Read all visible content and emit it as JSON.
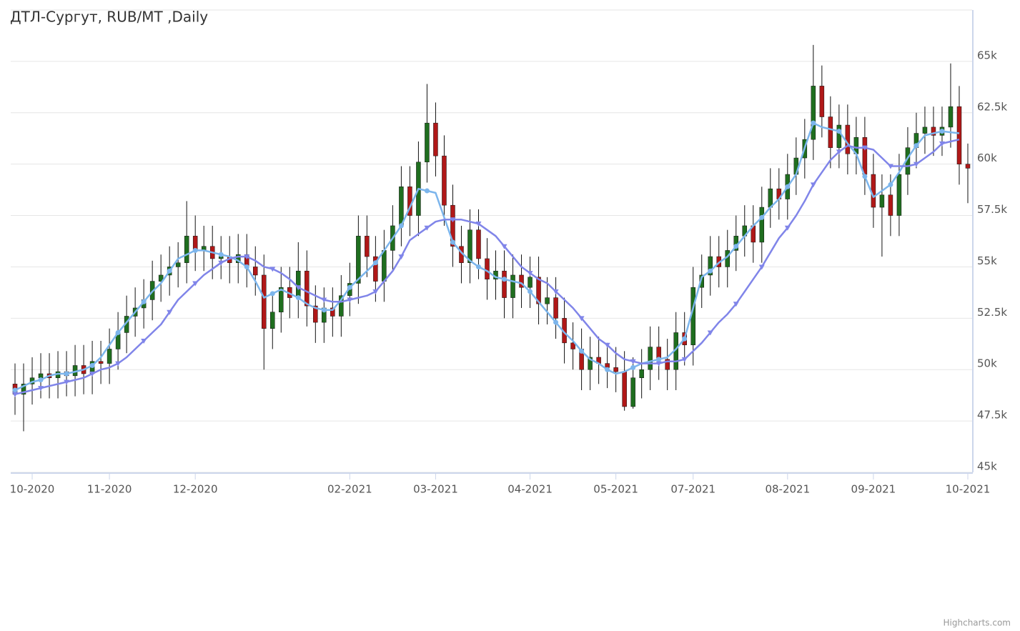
{
  "chart_data": {
    "type": "candlestick",
    "title": "ДТЛ-Сургут, RUB/MT ,Daily",
    "credits": "Highcharts.com",
    "categories": [
      null,
      null,
      "10-2020",
      null,
      null,
      null,
      null,
      null,
      null,
      null,
      null,
      "11-2020",
      null,
      null,
      null,
      null,
      null,
      null,
      null,
      null,
      null,
      "12-2020",
      null,
      null,
      null,
      null,
      null,
      null,
      null,
      null,
      null,
      null,
      null,
      null,
      null,
      null,
      null,
      null,
      null,
      "02-2021",
      null,
      null,
      null,
      null,
      null,
      null,
      null,
      null,
      null,
      "03-2021",
      null,
      null,
      null,
      null,
      null,
      null,
      null,
      null,
      null,
      null,
      "04-2021",
      null,
      null,
      null,
      null,
      null,
      null,
      null,
      null,
      null,
      "05-2021",
      null,
      null,
      null,
      null,
      null,
      null,
      null,
      null,
      "07-2021",
      null,
      null,
      null,
      null,
      null,
      null,
      null,
      null,
      null,
      null,
      "08-2021",
      null,
      null,
      null,
      null,
      null,
      null,
      null,
      null,
      null,
      "09-2021",
      null,
      null,
      null,
      null,
      null,
      null,
      null,
      null,
      null,
      null,
      "10-2021"
    ],
    "open": [
      49300,
      48800,
      49300,
      49600,
      49800,
      49600,
      49900,
      49700,
      50200,
      49800,
      50400,
      50300,
      51000,
      51800,
      52600,
      53000,
      53400,
      54300,
      54600,
      55000,
      55200,
      56500,
      55800,
      56000,
      55400,
      55500,
      55200,
      55600,
      55000,
      54600,
      52000,
      52800,
      54000,
      53500,
      54800,
      53100,
      52300,
      53000,
      52600,
      53600,
      54200,
      56500,
      55500,
      54300,
      55800,
      57000,
      58900,
      57500,
      60100,
      62000,
      60400,
      58000,
      56000,
      55200,
      56800,
      55400,
      54400,
      54800,
      53500,
      54600,
      54000,
      54500,
      53200,
      53500,
      52500,
      51300,
      51000,
      50000,
      50600,
      50300,
      50100,
      49900,
      48200,
      49600,
      50000,
      51100,
      50500,
      50000,
      51800,
      51200,
      54000,
      54600,
      55500,
      55000,
      55800,
      56500,
      57000,
      56200,
      57900,
      58800,
      58300,
      59500,
      60300,
      61200,
      63800,
      62300,
      60800,
      61900,
      60500,
      61300,
      59500,
      57900,
      58500,
      57500,
      59500,
      60800,
      61500,
      61800,
      61400,
      61800,
      62800,
      60000
    ],
    "high": [
      50300,
      50300,
      50600,
      50800,
      50800,
      50900,
      50900,
      51200,
      51200,
      51400,
      51400,
      52000,
      52800,
      53600,
      54000,
      54400,
      55300,
      55600,
      56000,
      56200,
      58200,
      57500,
      57000,
      57000,
      56500,
      56500,
      56600,
      56600,
      56000,
      55600,
      53800,
      55000,
      55000,
      56200,
      55800,
      54100,
      54000,
      54000,
      54600,
      55200,
      57500,
      57500,
      56500,
      56800,
      58000,
      59900,
      59900,
      61100,
      63900,
      63000,
      61400,
      59000,
      57000,
      57800,
      57800,
      56400,
      55800,
      55800,
      55600,
      55600,
      55500,
      55500,
      54500,
      54500,
      53500,
      52300,
      52000,
      51600,
      51600,
      51300,
      51100,
      50900,
      50600,
      51000,
      52100,
      52100,
      51500,
      52800,
      52800,
      55000,
      55600,
      56500,
      56500,
      56800,
      57500,
      58000,
      58000,
      58900,
      59800,
      59800,
      60500,
      61300,
      62200,
      65800,
      64800,
      63300,
      62900,
      62900,
      62300,
      62300,
      60500,
      59500,
      59500,
      60500,
      61800,
      62500,
      62800,
      62800,
      62800,
      64900,
      63800,
      61000
    ],
    "low": [
      47800,
      47000,
      48300,
      48600,
      48600,
      48600,
      48700,
      48700,
      48800,
      48800,
      49300,
      49300,
      50000,
      50800,
      51600,
      52000,
      52400,
      53300,
      53600,
      54000,
      54200,
      54800,
      54800,
      54400,
      54400,
      54200,
      54200,
      54000,
      53600,
      50000,
      51000,
      51800,
      52500,
      52500,
      52100,
      51300,
      51300,
      51600,
      51600,
      52600,
      53200,
      54500,
      53300,
      53300,
      54800,
      56000,
      56500,
      56500,
      59100,
      59400,
      57000,
      55000,
      54200,
      54200,
      54400,
      53400,
      53400,
      52500,
      52500,
      53000,
      53000,
      52200,
      52200,
      51500,
      50300,
      50000,
      49000,
      49000,
      49300,
      49100,
      48900,
      48000,
      48100,
      48600,
      49000,
      49500,
      49000,
      49000,
      50200,
      50200,
      53000,
      53600,
      54000,
      54000,
      54800,
      55500,
      55200,
      55200,
      56900,
      57300,
      57300,
      58500,
      59300,
      60200,
      61300,
      59800,
      59800,
      59500,
      59500,
      58500,
      56900,
      55500,
      56500,
      56500,
      58500,
      59800,
      60500,
      60400,
      60400,
      60800,
      59000,
      58100
    ],
    "close": [
      48800,
      49300,
      49600,
      49800,
      49600,
      49900,
      49700,
      50200,
      49800,
      50400,
      50300,
      51000,
      51800,
      52600,
      53000,
      53400,
      54300,
      54600,
      55000,
      55200,
      56500,
      55800,
      56000,
      55400,
      55500,
      55200,
      55600,
      55000,
      54600,
      52000,
      52800,
      54000,
      53500,
      54800,
      53100,
      52300,
      53000,
      52600,
      53600,
      54200,
      56500,
      55500,
      54300,
      55800,
      57000,
      58900,
      57500,
      60100,
      62000,
      60400,
      58000,
      56000,
      55200,
      56800,
      55400,
      54400,
      54800,
      53500,
      54600,
      54000,
      54500,
      53200,
      53500,
      52500,
      51300,
      51000,
      50000,
      50600,
      50300,
      50100,
      49900,
      48200,
      49600,
      50000,
      51100,
      50500,
      50000,
      51800,
      51200,
      54000,
      54600,
      55500,
      55000,
      55800,
      56500,
      57000,
      56200,
      57900,
      58800,
      58300,
      59500,
      60300,
      61200,
      63800,
      62300,
      60800,
      61900,
      60500,
      61300,
      59500,
      57900,
      58500,
      57500,
      59500,
      60800,
      61500,
      61800,
      61400,
      61800,
      62800,
      60000,
      59800
    ],
    "up_color": "#1f6e1f",
    "down_color": "#b01818",
    "lines": [
      {
        "color": "#7cb5ec",
        "marker": "circle",
        "values": [
          49000,
          49200,
          49400,
          49500,
          49700,
          49800,
          49800,
          49900,
          50000,
          50200,
          50600,
          51200,
          51800,
          52300,
          52800,
          53300,
          53800,
          54200,
          54800,
          55400,
          55600,
          55800,
          55800,
          55700,
          55600,
          55500,
          55300,
          55000,
          54300,
          53500,
          53700,
          53900,
          53700,
          53500,
          53200,
          53000,
          52900,
          52900,
          53400,
          54000,
          54400,
          54800,
          55200,
          55800,
          56400,
          57000,
          57900,
          58800,
          58700,
          58600,
          57400,
          56200,
          55700,
          55300,
          55000,
          54800,
          54500,
          54400,
          54300,
          54200,
          53800,
          53300,
          52800,
          52300,
          51800,
          51400,
          50900,
          50500,
          50300,
          50000,
          49800,
          49900,
          50100,
          50300,
          50400,
          50500,
          50600,
          51000,
          51500,
          53000,
          54500,
          54800,
          55200,
          55500,
          56000,
          56500,
          57000,
          57400,
          57900,
          58300,
          58900,
          59500,
          60800,
          62000,
          61800,
          61700,
          61600,
          61000,
          60500,
          59400,
          58400,
          58700,
          59000,
          59600,
          60300,
          60900,
          61400,
          61500,
          61600,
          61550,
          61500,
          null
        ]
      },
      {
        "color": "#8085e9",
        "marker": "triangle-down",
        "values": [
          48800,
          48900,
          49000,
          49100,
          49200,
          49300,
          49400,
          49500,
          49600,
          49800,
          50000,
          50100,
          50300,
          50600,
          51000,
          51400,
          51800,
          52200,
          52800,
          53400,
          53800,
          54200,
          54600,
          54900,
          55200,
          55400,
          55500,
          55500,
          55300,
          55000,
          54900,
          54700,
          54400,
          54000,
          53800,
          53600,
          53400,
          53300,
          53300,
          53400,
          53500,
          53600,
          53800,
          54300,
          54800,
          55500,
          56300,
          56600,
          56900,
          57200,
          57300,
          57300,
          57300,
          57200,
          57100,
          56800,
          56500,
          56000,
          55500,
          55000,
          54700,
          54400,
          54200,
          53800,
          53400,
          53000,
          52500,
          52000,
          51500,
          51200,
          50800,
          50500,
          50400,
          50300,
          50300,
          50300,
          50400,
          50400,
          50500,
          50900,
          51300,
          51800,
          52300,
          52700,
          53200,
          53800,
          54400,
          55000,
          55700,
          56400,
          56900,
          57500,
          58200,
          59000,
          59600,
          60200,
          60600,
          60900,
          60800,
          60800,
          60700,
          60300,
          59900,
          59900,
          59900,
          60000,
          60300,
          60600,
          61000,
          61100,
          61200,
          null
        ]
      }
    ],
    "ylim": [
      45000,
      67500
    ],
    "yticks": [
      {
        "value": 45000,
        "label": "45k"
      },
      {
        "value": 47500,
        "label": "47.5k"
      },
      {
        "value": 50000,
        "label": "50k"
      },
      {
        "value": 52500,
        "label": "52.5k"
      },
      {
        "value": 55000,
        "label": "55k"
      },
      {
        "value": 57500,
        "label": "57.5k"
      },
      {
        "value": 60000,
        "label": "60k"
      },
      {
        "value": 62500,
        "label": "62.5k"
      },
      {
        "value": 65000,
        "label": "65k"
      }
    ],
    "grid": true
  }
}
